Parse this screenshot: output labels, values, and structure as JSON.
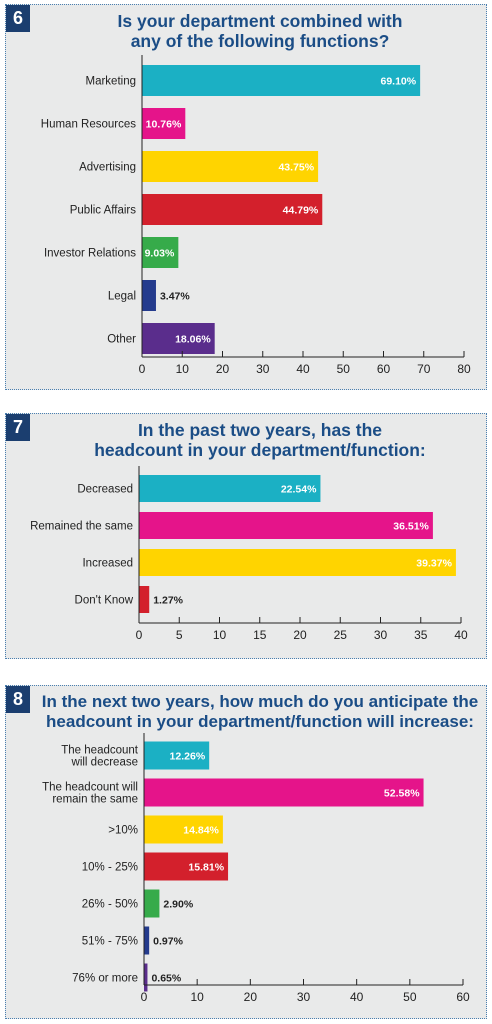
{
  "charts": [
    {
      "number": "6",
      "title_lines": [
        "Is your department combined with",
        "any of the following functions?"
      ],
      "chart_data": {
        "type": "bar",
        "orientation": "horizontal",
        "categories": [
          "Marketing",
          "Human Resources",
          "Advertising",
          "Public Affairs",
          "Investor Relations",
          "Legal",
          "Other"
        ],
        "values": [
          69.1,
          10.76,
          43.75,
          44.79,
          9.03,
          3.47,
          18.06
        ],
        "value_labels": [
          "69.10%",
          "10.76%",
          "43.75%",
          "44.79%",
          "9.03%",
          "3.47%",
          "18.06%"
        ],
        "colors": [
          "#1bb0c4",
          "#e5148a",
          "#ffd400",
          "#d3202c",
          "#36ab4a",
          "#243b8d",
          "#5a2d8c"
        ],
        "xlim": [
          0,
          80
        ],
        "ticks": [
          0,
          10,
          20,
          30,
          40,
          50,
          60,
          70,
          80
        ]
      }
    },
    {
      "number": "7",
      "title_lines": [
        "In the past two years, has the",
        "headcount in your department/function:"
      ],
      "chart_data": {
        "type": "bar",
        "orientation": "horizontal",
        "categories": [
          "Decreased",
          "Remained the same",
          "Increased",
          "Don't Know"
        ],
        "values": [
          22.54,
          36.51,
          39.37,
          1.27
        ],
        "value_labels": [
          "22.54%",
          "36.51%",
          "39.37%",
          "1.27%"
        ],
        "colors": [
          "#1bb0c4",
          "#e5148a",
          "#ffd400",
          "#d3202c"
        ],
        "xlim": [
          0,
          40
        ],
        "ticks": [
          0,
          5,
          10,
          15,
          20,
          25,
          30,
          35,
          40
        ]
      }
    },
    {
      "number": "8",
      "title_lines": [
        "In the next two years, how much do you anticipate the",
        "headcount in your department/function will increase:"
      ],
      "chart_data": {
        "type": "bar",
        "orientation": "horizontal",
        "categories": [
          [
            "The headcount",
            "will decrease"
          ],
          [
            "The headcount will",
            "remain the same"
          ],
          ">10%",
          "10% - 25%",
          "26% - 50%",
          "51% - 75%",
          "76% or more"
        ],
        "values": [
          12.26,
          52.58,
          14.84,
          15.81,
          2.9,
          0.97,
          0.65
        ],
        "value_labels": [
          "12.26%",
          "52.58%",
          "14.84%",
          "15.81%",
          "2.90%",
          "0.97%",
          "0.65%"
        ],
        "colors": [
          "#1bb0c4",
          "#e5148a",
          "#ffd400",
          "#d3202c",
          "#36ab4a",
          "#243b8d",
          "#5a2d8c"
        ],
        "xlim": [
          0,
          60
        ],
        "ticks": [
          0,
          10,
          20,
          30,
          40,
          50,
          60
        ]
      }
    }
  ]
}
